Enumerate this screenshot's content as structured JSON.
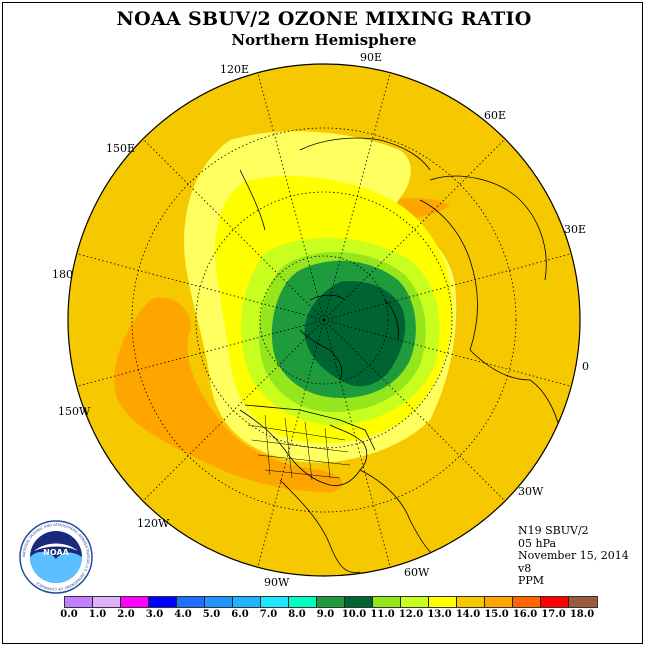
{
  "title": "NOAA SBUV/2 OZONE MIXING RATIO",
  "subtitle": "Northern Hemisphere",
  "logo_text": "NOAA",
  "logo_ring_text": "NATIONAL OCEANIC AND ATMOSPHERIC ADMINISTRATION U.S. DEPARTMENT OF COMMERCE",
  "longitude_labels": [
    "90E",
    "60E",
    "30E",
    "0",
    "30W",
    "60W",
    "90W",
    "120W",
    "150W",
    "180",
    "150E",
    "120E"
  ],
  "info": {
    "instrument": "N19 SBUV/2",
    "level": "05 hPa",
    "date": "November 15, 2014",
    "version": "v8",
    "units": "PPM"
  },
  "colorbar": {
    "colors": [
      "#c080ff",
      "#e0b0ff",
      "#ff00ff",
      "#0000ff",
      "#1e6fff",
      "#1e96ff",
      "#1eb4ff",
      "#1ee6ff",
      "#00ffc0",
      "#1e9b3c",
      "#006432",
      "#96e61e",
      "#c8ff1e",
      "#ffff00",
      "#f5c800",
      "#ffa500",
      "#ff6400",
      "#ff0000",
      "#9b5a3c"
    ],
    "tick_labels": [
      "0.0",
      "1.0",
      "2.0",
      "3.0",
      "4.0",
      "5.0",
      "6.0",
      "7.0",
      "8.0",
      "9.0",
      "10.0",
      "11.0",
      "12.0",
      "13.0",
      "14.0",
      "15.0",
      "16.0",
      "17.0",
      "18.0"
    ]
  },
  "map_colors": {
    "background": "#f5c800",
    "high_orange": "#ffa500",
    "deep_orange": "#ff8c1e",
    "light_yellow": "#ffff60",
    "yellow": "#ffff00",
    "yellow_green": "#c8ff1e",
    "light_green": "#96e61e",
    "green": "#1e9b3c",
    "dark_green": "#006432"
  }
}
